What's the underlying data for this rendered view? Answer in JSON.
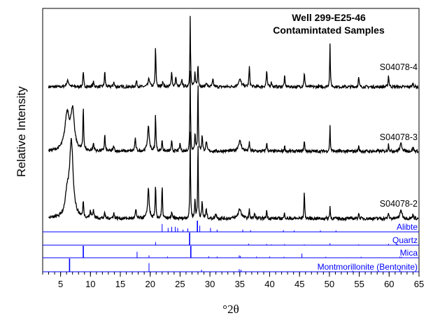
{
  "chart_data": {
    "type": "line",
    "title_lines": [
      "Well 299-E25-46",
      "Contamintated Samples"
    ],
    "xlabel": "°2θ",
    "ylabel": "Relative Intensity",
    "xlim": [
      2,
      65
    ],
    "x_ticks": [
      5,
      10,
      15,
      20,
      25,
      30,
      35,
      40,
      45,
      50,
      55,
      60,
      65
    ],
    "x_minor_step": 1,
    "grid": false,
    "series": [
      {
        "name": "S04078-4",
        "color": "#000000",
        "baseline": 0.12,
        "noise": 0.012,
        "peaks": [
          [
            6.2,
            0.05,
            0.25
          ],
          [
            8.8,
            0.12,
            0.08
          ],
          [
            10.5,
            0.04,
            0.1
          ],
          [
            12.4,
            0.13,
            0.08
          ],
          [
            13.9,
            0.04,
            0.1
          ],
          [
            17.7,
            0.05,
            0.1
          ],
          [
            19.8,
            0.07,
            0.15
          ],
          [
            20.9,
            0.34,
            0.07
          ],
          [
            22.1,
            0.05,
            0.1
          ],
          [
            23.6,
            0.14,
            0.08
          ],
          [
            24.3,
            0.09,
            0.08
          ],
          [
            25.3,
            0.06,
            0.1
          ],
          [
            26.7,
            0.59,
            0.06
          ],
          [
            27.5,
            0.12,
            0.08
          ],
          [
            28.0,
            0.19,
            0.08
          ],
          [
            29.4,
            0.04,
            0.1
          ],
          [
            30.5,
            0.06,
            0.1
          ],
          [
            35.0,
            0.06,
            0.3
          ],
          [
            36.6,
            0.17,
            0.08
          ],
          [
            39.5,
            0.14,
            0.08
          ],
          [
            40.3,
            0.04,
            0.1
          ],
          [
            42.5,
            0.09,
            0.08
          ],
          [
            45.8,
            0.12,
            0.08
          ],
          [
            50.1,
            0.36,
            0.06
          ],
          [
            54.9,
            0.08,
            0.08
          ],
          [
            59.9,
            0.1,
            0.08
          ],
          [
            64.0,
            0.03,
            0.1
          ]
        ]
      },
      {
        "name": "S04078-3",
        "color": "#000000",
        "baseline": 0.1,
        "noise": 0.012,
        "peaks": [
          [
            6.1,
            0.29,
            0.45
          ],
          [
            7.0,
            0.3,
            0.35
          ],
          [
            8.8,
            0.35,
            0.07
          ],
          [
            10.5,
            0.06,
            0.1
          ],
          [
            12.4,
            0.13,
            0.08
          ],
          [
            13.9,
            0.04,
            0.1
          ],
          [
            17.5,
            0.1,
            0.1
          ],
          [
            19.7,
            0.19,
            0.18
          ],
          [
            20.9,
            0.3,
            0.07
          ],
          [
            22.0,
            0.09,
            0.08
          ],
          [
            23.6,
            0.08,
            0.08
          ],
          [
            25.0,
            0.06,
            0.1
          ],
          [
            26.7,
            0.64,
            0.06
          ],
          [
            27.5,
            0.14,
            0.08
          ],
          [
            28.0,
            0.58,
            0.06
          ],
          [
            28.7,
            0.13,
            0.08
          ],
          [
            29.4,
            0.08,
            0.1
          ],
          [
            35.0,
            0.08,
            0.3
          ],
          [
            36.6,
            0.07,
            0.08
          ],
          [
            39.5,
            0.07,
            0.08
          ],
          [
            42.5,
            0.04,
            0.08
          ],
          [
            45.8,
            0.08,
            0.08
          ],
          [
            50.1,
            0.2,
            0.06
          ],
          [
            54.9,
            0.04,
            0.08
          ],
          [
            59.9,
            0.06,
            0.08
          ],
          [
            62.0,
            0.06,
            0.2
          ],
          [
            64.0,
            0.03,
            0.1
          ]
        ]
      },
      {
        "name": "S04078-2",
        "color": "#000000",
        "baseline": 0.08,
        "noise": 0.012,
        "peaks": [
          [
            6.8,
            0.55,
            0.35
          ],
          [
            6.1,
            0.15,
            0.4
          ],
          [
            8.8,
            0.12,
            0.07
          ],
          [
            10.0,
            0.05,
            0.1
          ],
          [
            10.5,
            0.06,
            0.1
          ],
          [
            12.4,
            0.04,
            0.08
          ],
          [
            13.9,
            0.04,
            0.1
          ],
          [
            17.6,
            0.06,
            0.1
          ],
          [
            19.7,
            0.22,
            0.15
          ],
          [
            20.9,
            0.25,
            0.07
          ],
          [
            22.0,
            0.24,
            0.07
          ],
          [
            23.6,
            0.05,
            0.08
          ],
          [
            26.7,
            0.64,
            0.06
          ],
          [
            27.5,
            0.14,
            0.08
          ],
          [
            28.0,
            0.58,
            0.06
          ],
          [
            28.7,
            0.12,
            0.08
          ],
          [
            29.4,
            0.07,
            0.1
          ],
          [
            31.0,
            0.04,
            0.1
          ],
          [
            35.0,
            0.07,
            0.3
          ],
          [
            36.6,
            0.06,
            0.08
          ],
          [
            37.5,
            0.04,
            0.08
          ],
          [
            39.5,
            0.06,
            0.08
          ],
          [
            42.5,
            0.04,
            0.08
          ],
          [
            45.8,
            0.22,
            0.06
          ],
          [
            50.1,
            0.09,
            0.06
          ],
          [
            54.9,
            0.04,
            0.08
          ],
          [
            59.9,
            0.04,
            0.08
          ],
          [
            62.0,
            0.06,
            0.2
          ],
          [
            64.0,
            0.03,
            0.1
          ]
        ]
      }
    ],
    "reference_patterns": [
      {
        "name": "Alibte",
        "color": "#0000ff",
        "sticks": [
          [
            22.0,
            0.7
          ],
          [
            23.0,
            0.35
          ],
          [
            23.6,
            0.45
          ],
          [
            24.2,
            0.45
          ],
          [
            24.6,
            0.35
          ],
          [
            25.5,
            0.2
          ],
          [
            26.3,
            0.3
          ],
          [
            27.9,
            1.0
          ],
          [
            28.3,
            0.55
          ],
          [
            30.1,
            0.35
          ],
          [
            31.2,
            0.2
          ],
          [
            35.5,
            0.2
          ],
          [
            36.8,
            0.15
          ],
          [
            42.3,
            0.15
          ],
          [
            44.1,
            0.12
          ],
          [
            48.5,
            0.12
          ],
          [
            51.1,
            0.12
          ]
        ]
      },
      {
        "name": "Quartz",
        "color": "#0000ff",
        "sticks": [
          [
            20.9,
            0.25
          ],
          [
            26.6,
            1.0
          ],
          [
            36.5,
            0.12
          ],
          [
            39.5,
            0.1
          ],
          [
            40.3,
            0.06
          ],
          [
            42.5,
            0.08
          ],
          [
            45.8,
            0.06
          ],
          [
            50.1,
            0.15
          ],
          [
            54.9,
            0.06
          ],
          [
            59.9,
            0.1
          ]
        ]
      },
      {
        "name": "Mica",
        "color": "#0000ff",
        "sticks": [
          [
            8.8,
            1.0
          ],
          [
            17.8,
            0.5
          ],
          [
            19.8,
            0.2
          ],
          [
            22.9,
            0.1
          ],
          [
            26.8,
            1.0
          ],
          [
            29.8,
            0.12
          ],
          [
            31.2,
            0.1
          ],
          [
            34.9,
            0.2
          ],
          [
            35.1,
            0.15
          ],
          [
            37.8,
            0.1
          ],
          [
            40.0,
            0.1
          ],
          [
            42.4,
            0.08
          ],
          [
            45.4,
            0.35
          ],
          [
            49.4,
            0.08
          ],
          [
            55.3,
            0.08
          ],
          [
            61.8,
            0.1
          ],
          [
            62.1,
            0.08
          ]
        ]
      },
      {
        "name": "Montmorillonite (Bentonite)",
        "color": "#0000ff",
        "sticks": [
          [
            6.5,
            1.0
          ],
          [
            19.8,
            0.65
          ],
          [
            28.6,
            0.15
          ],
          [
            34.9,
            0.2
          ],
          [
            35.2,
            0.15
          ],
          [
            53.9,
            0.08
          ],
          [
            61.8,
            0.15
          ]
        ]
      }
    ]
  }
}
